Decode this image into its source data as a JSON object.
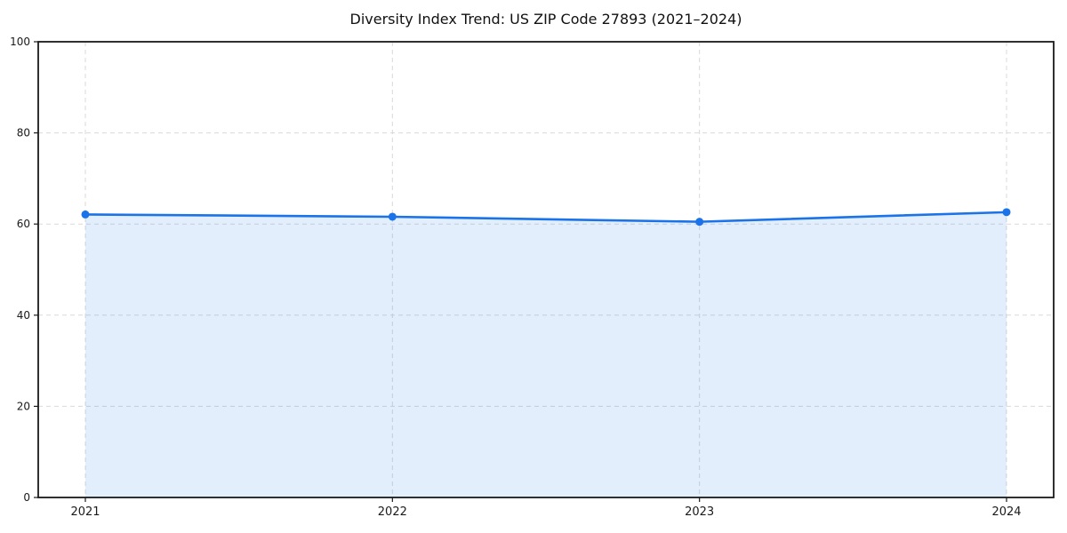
{
  "page": {
    "background": "#ffffff"
  },
  "chart_data": {
    "type": "area",
    "title": "Diversity Index Trend: US ZIP Code 27893 (2021–2024)",
    "categories": [
      "2021",
      "2022",
      "2023",
      "2024"
    ],
    "series": [
      {
        "name": "Diversity Index",
        "values": [
          62.1,
          61.6,
          60.5,
          62.6
        ]
      }
    ],
    "xlabel": "",
    "ylabel": "",
    "ylim": [
      0,
      100
    ],
    "yticks": [
      0,
      20,
      40,
      60,
      80,
      100
    ],
    "grid": true,
    "grid_style": "dashed",
    "legend": false,
    "marker": "circle",
    "colors": {
      "line": "#1a73e8",
      "marker": "#1a73e8",
      "area_fill": "rgba(26,115,232,0.12)",
      "grid": "#d9d9d9",
      "spine": "#1a1a1a",
      "tick_label": "#1a1a1a",
      "title": "#111111"
    }
  }
}
